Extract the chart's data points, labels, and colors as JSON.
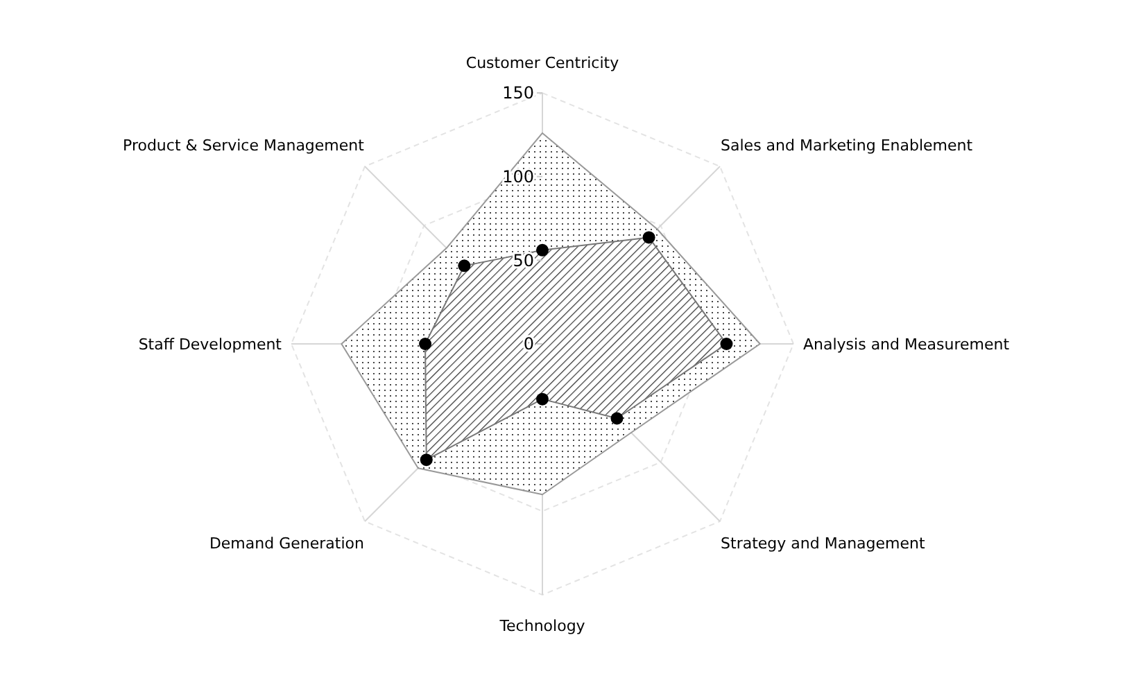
{
  "chart_data": {
    "type": "radar",
    "categories": [
      "Customer Centricity",
      "Sales and Marketing Enablement",
      "Analysis and Measurement",
      "Strategy and Management",
      "Technology",
      "Demand Generation",
      "Staff Development",
      "Product & Service Management"
    ],
    "series": [
      {
        "color": "#999999",
        "marker": "none",
        "values": [
          126,
          97,
          130,
          75,
          90,
          105,
          120,
          81
        ]
      },
      {
        "color": "#777777",
        "marker": "circle",
        "values": [
          56,
          90,
          110,
          63,
          33,
          98,
          70,
          66
        ]
      }
    ],
    "ylim": [
      0,
      150
    ],
    "yticks": [
      0,
      50,
      100,
      150
    ],
    "grid": true
  }
}
